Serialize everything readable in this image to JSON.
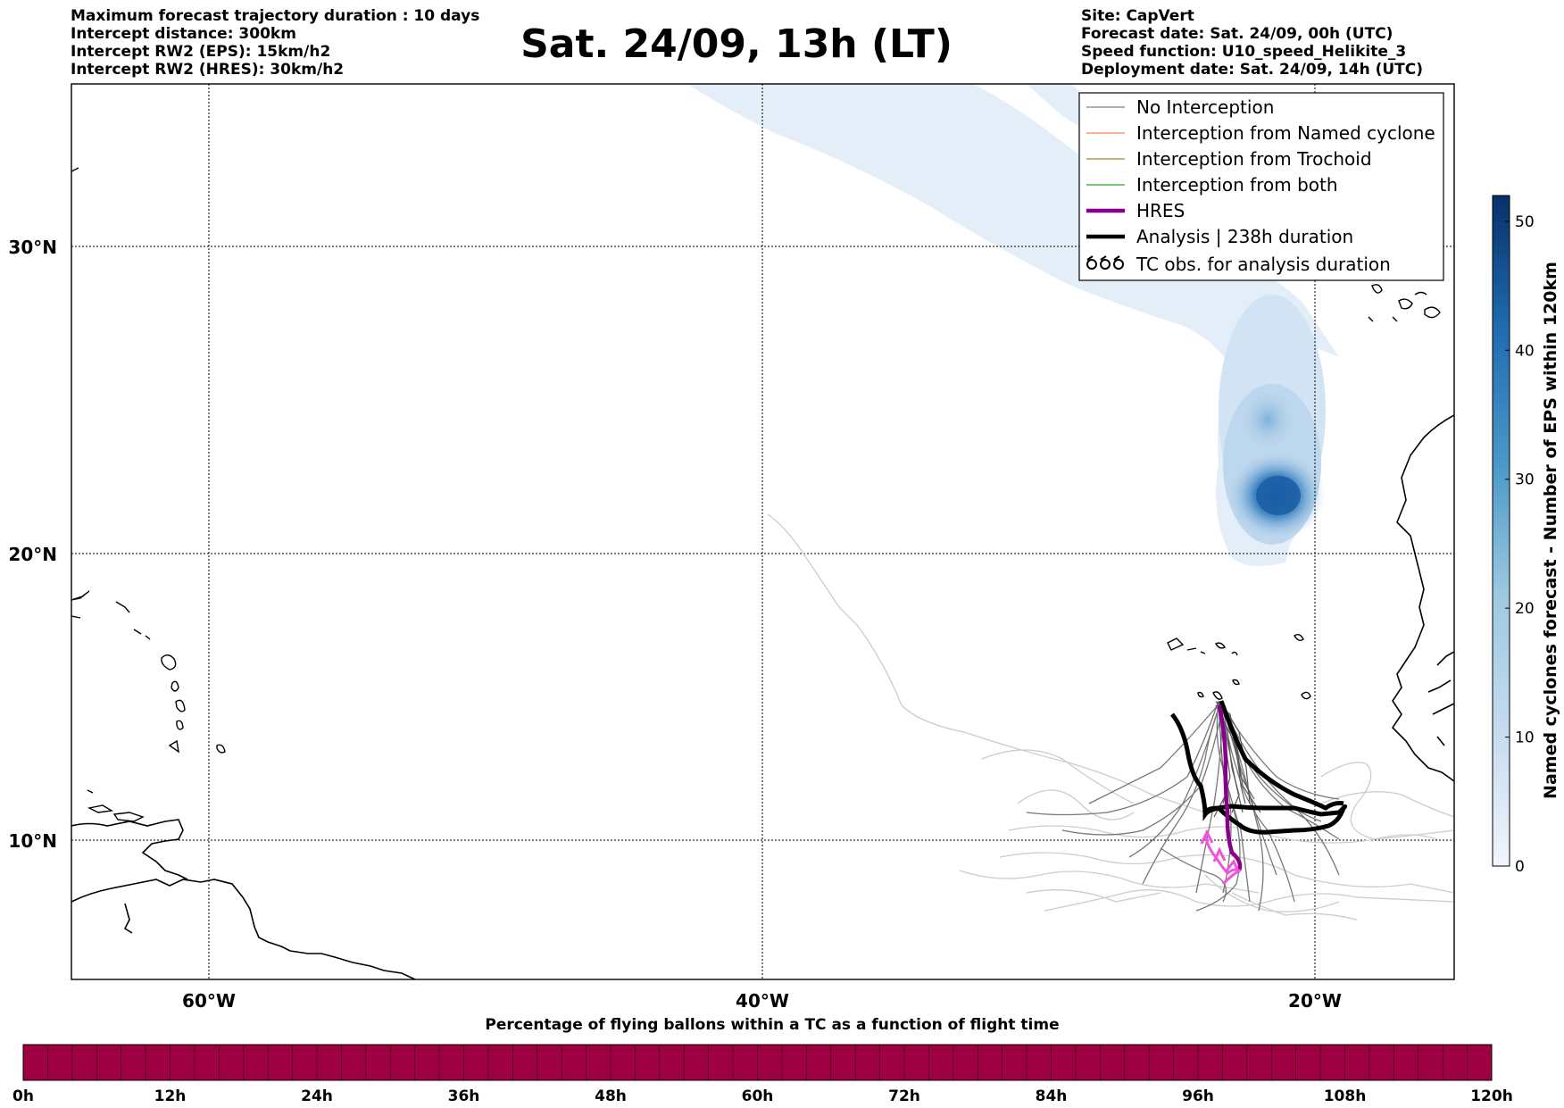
{
  "header": {
    "left": [
      "Maximum forecast trajectory duration : 10 days",
      "Intercept distance: 300km",
      "Intercept RW2 (EPS):  15km/h2",
      "Intercept RW2 (HRES): 30km/h2"
    ],
    "title": "Sat. 24/09, 13h (LT)",
    "right": [
      "Site: CapVert",
      "Forecast date: Sat. 24/09, 00h (UTC)",
      "Speed function: U10_speed_Helikite_3",
      "Deployment date: Sat. 24/09, 14h (UTC)"
    ]
  },
  "map": {
    "lat_labels": [
      "30°N",
      "20°N",
      "10°N"
    ],
    "lon_labels": [
      "60°W",
      "40°W",
      "20°W"
    ],
    "lat_values": [
      30,
      20,
      10
    ],
    "lon_values": [
      -60,
      -40,
      -20
    ],
    "extent": {
      "lon_min": -65,
      "lon_max": -15,
      "lat_min": 5.4,
      "lat_max": 34.7
    }
  },
  "legend": {
    "items": [
      {
        "label": "No Interception",
        "color": "#808080",
        "style": "thin-line"
      },
      {
        "label": "Interception from Named cyclone",
        "color": "#ff7f50",
        "style": "thin-line"
      },
      {
        "label": "Interception from Trochoid",
        "color": "#9b8b3a",
        "style": "thin-line"
      },
      {
        "label": "Interception from both",
        "color": "#2ca02c",
        "style": "thin-line"
      },
      {
        "label": "HRES",
        "color": "#8b008b",
        "style": "thick-line"
      },
      {
        "label": "Analysis | 238h duration",
        "color": "#000000",
        "style": "thick-line"
      },
      {
        "label": "TC obs. for analysis duration",
        "color": "#000000",
        "style": "cyclone-symbols"
      }
    ]
  },
  "colorbar_right": {
    "label": "Named cyclones forecast - Number of EPS within 120km",
    "ticks": [
      "50",
      "40",
      "30",
      "20",
      "10",
      "0"
    ],
    "tick_values": [
      50,
      40,
      30,
      20,
      10,
      0
    ],
    "range": [
      0,
      52
    ],
    "color_low": "#f1f6fc",
    "color_high": "#08306b"
  },
  "colorbar_bottom": {
    "title": "Percentage of flying ballons within a TC as a function of flight time",
    "ticks": [
      "0h",
      "12h",
      "24h",
      "36h",
      "48h",
      "60h",
      "72h",
      "84h",
      "96h",
      "108h",
      "120h"
    ],
    "fill_color": "#9e0142"
  }
}
